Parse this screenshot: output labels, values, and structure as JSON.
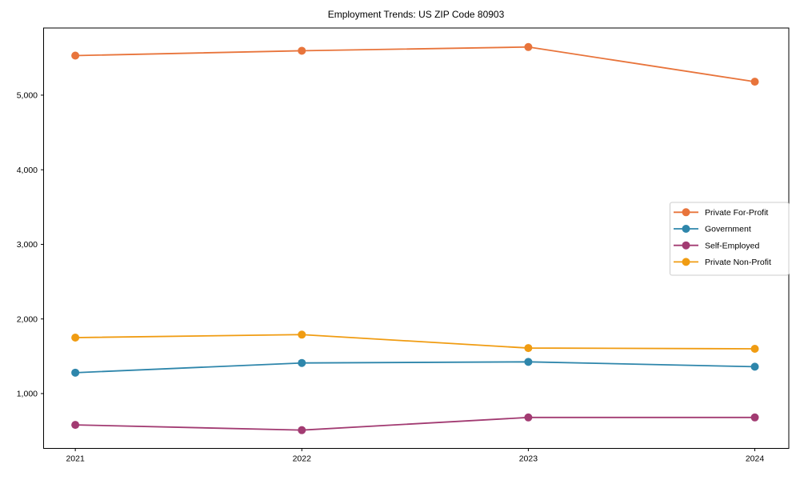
{
  "chart_data": {
    "type": "line",
    "title": "Employment Trends: US ZIP Code 80903",
    "xlabel": "",
    "ylabel": "",
    "x": [
      2021,
      2022,
      2023,
      2024
    ],
    "xtick_labels": [
      "2021",
      "2022",
      "2023",
      "2024"
    ],
    "yticks": [
      {
        "value": 1000,
        "label": "1,000"
      },
      {
        "value": 2000,
        "label": "2,000"
      },
      {
        "value": 3000,
        "label": "3,000"
      },
      {
        "value": 4000,
        "label": "4,000"
      },
      {
        "value": 5000,
        "label": "5,000"
      }
    ],
    "xlim": [
      2020.86,
      2024.15
    ],
    "ylim": [
      265,
      5900
    ],
    "grid": false,
    "legend_position": "center right",
    "marker": "circle",
    "series": [
      {
        "name": "Private For-Profit",
        "color": "#e8743b",
        "values": [
          5530,
          5595,
          5645,
          5180
        ]
      },
      {
        "name": "Government",
        "color": "#2e86ab",
        "values": [
          1280,
          1410,
          1425,
          1360
        ]
      },
      {
        "name": "Self-Employed",
        "color": "#a23b72",
        "values": [
          580,
          510,
          680,
          680
        ]
      },
      {
        "name": "Private Non-Profit",
        "color": "#f09c12",
        "values": [
          1750,
          1790,
          1610,
          1600
        ]
      }
    ],
    "colors": {
      "background": "#ffffff",
      "spine": "#000000",
      "tick": "#000000",
      "legend_border": "#cccccc",
      "legend_background": "#ffffff",
      "text": "#000000"
    }
  }
}
